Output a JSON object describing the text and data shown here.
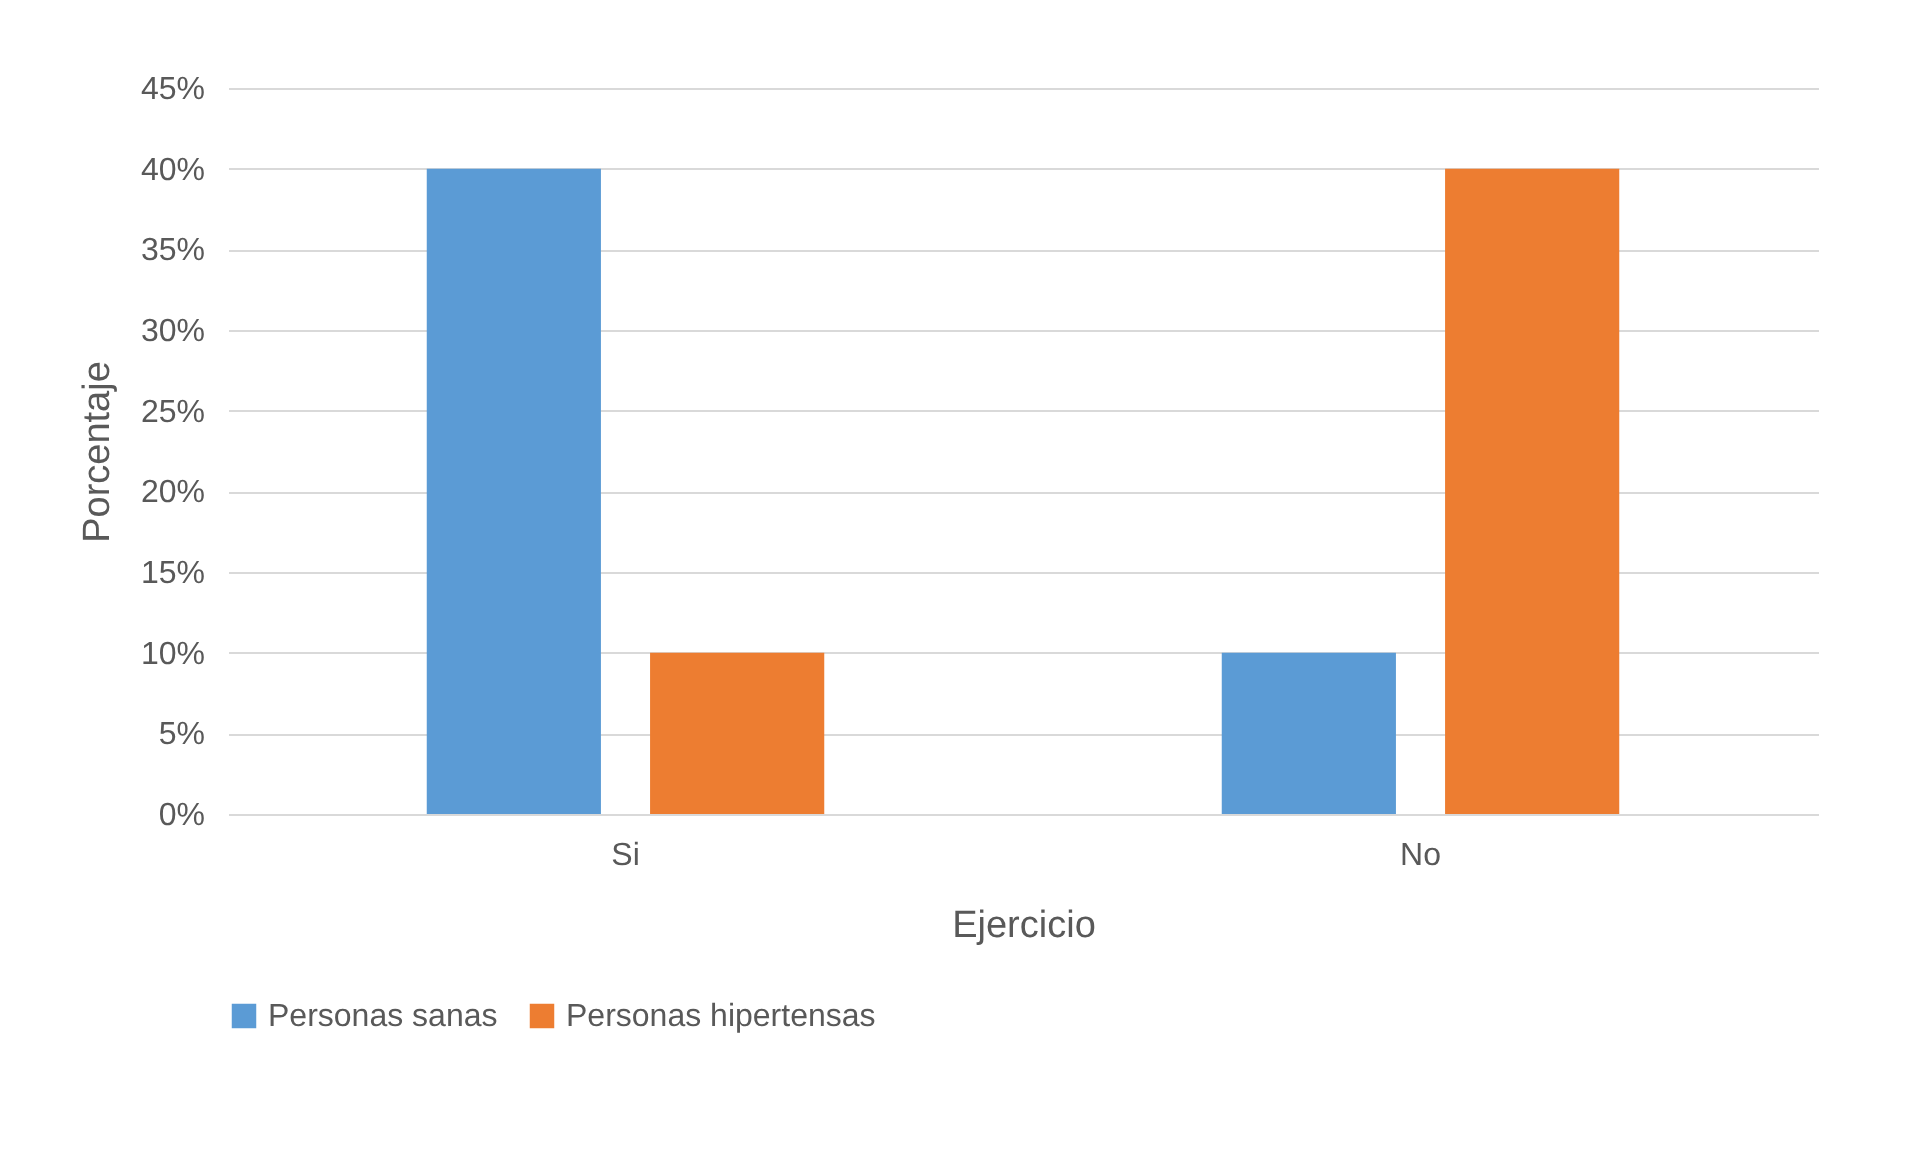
{
  "chart_data": {
    "type": "bar",
    "xlabel": "Ejercicio",
    "ylabel": "Porcentaje",
    "categories": [
      "Si",
      "No"
    ],
    "series": [
      {
        "name": "Personas sanas",
        "color": "#5b9bd5",
        "values": [
          40,
          10
        ]
      },
      {
        "name": "Personas hipertensas",
        "color": "#ed7d31",
        "values": [
          10,
          40
        ]
      }
    ],
    "ylim": [
      0,
      45
    ],
    "yticks": [
      {
        "value": 0,
        "label": "0%"
      },
      {
        "value": 5,
        "label": "5%"
      },
      {
        "value": 10,
        "label": "10%"
      },
      {
        "value": 15,
        "label": "15%"
      },
      {
        "value": 20,
        "label": "20%"
      },
      {
        "value": 25,
        "label": "25%"
      },
      {
        "value": 30,
        "label": "30%"
      },
      {
        "value": 35,
        "label": "35%"
      },
      {
        "value": 40,
        "label": "40%"
      },
      {
        "value": 45,
        "label": "45%"
      }
    ],
    "grid": "y",
    "legend": "bottom"
  }
}
